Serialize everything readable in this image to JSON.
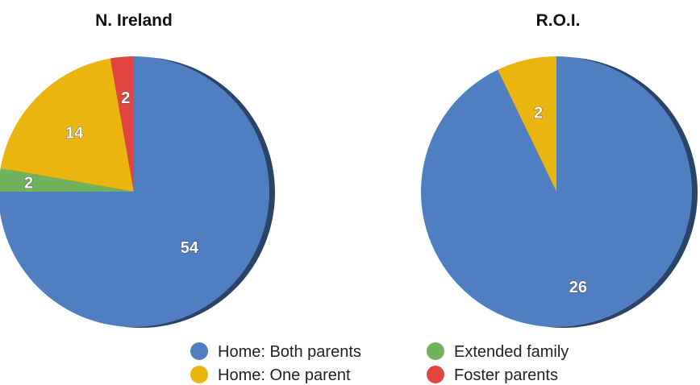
{
  "chart_data": [
    {
      "type": "pie",
      "title": "N. Ireland",
      "slices": [
        {
          "name": "Home: Both parents",
          "value": 54,
          "label": "54"
        },
        {
          "name": "Extended family",
          "value": 2,
          "label": "2"
        },
        {
          "name": "Home: One parent",
          "value": 14,
          "label": "14"
        },
        {
          "name": "Foster parents",
          "value": 2,
          "label": "2"
        }
      ]
    },
    {
      "type": "pie",
      "title": "R.O.I.",
      "slices": [
        {
          "name": "Home: Both parents",
          "value": 26,
          "label": "26"
        },
        {
          "name": "Home: One parent",
          "value": 2,
          "label": "2"
        }
      ]
    }
  ],
  "legend": {
    "placement": "bottom-center",
    "items": [
      {
        "label": "Home: Both parents",
        "color": "#4f7fc0"
      },
      {
        "label": "Extended family",
        "color": "#70b35c"
      },
      {
        "label": "Home: One parent",
        "color": "#e9b50e"
      },
      {
        "label": "Foster parents",
        "color": "#e2453f"
      }
    ]
  },
  "colors": {
    "Home: Both parents": "#4f7fc0",
    "Extended family": "#70b35c",
    "Home: One parent": "#e9b50e",
    "Foster parents": "#e2453f",
    "shadow": "#2a4468"
  }
}
